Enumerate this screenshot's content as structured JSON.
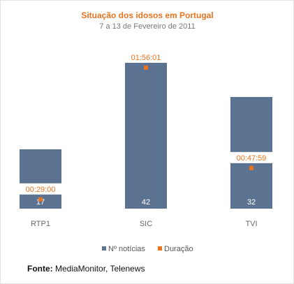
{
  "chart_data": {
    "type": "bar",
    "title": "Situação dos idosos em Portugal",
    "subtitle": "7 a 13 de Fevereiro de 2011",
    "categories": [
      "RTP1",
      "SIC",
      "TVI"
    ],
    "series": [
      {
        "name": "Nº notícias",
        "type": "bar",
        "values": [
          17,
          42,
          32
        ],
        "color": "#5b7391"
      },
      {
        "name": "Duração",
        "type": "marker",
        "values": [
          "00:29:00",
          "01:56:01",
          "00:47:59"
        ],
        "color": "#e8741f"
      }
    ],
    "ylim": [
      0,
      42
    ],
    "grid": false,
    "legend_position": "bottom-center"
  },
  "source": {
    "label": "Fonte:",
    "text": "MediaMonitor, Telenews"
  }
}
